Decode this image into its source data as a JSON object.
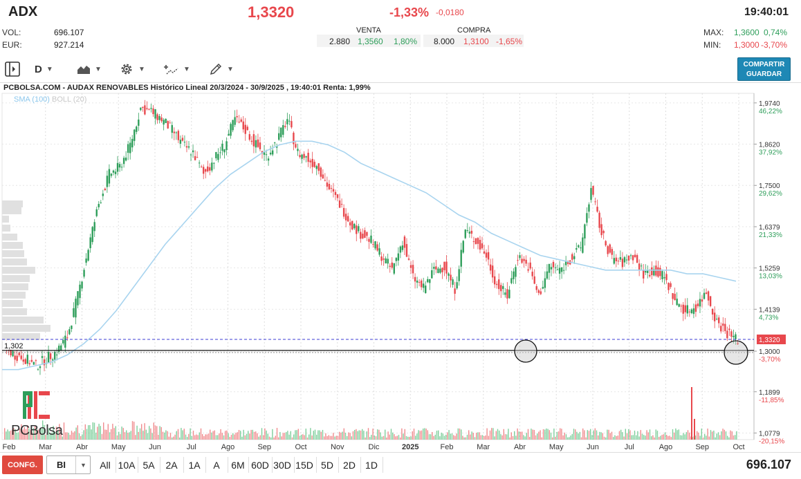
{
  "header": {
    "ticker": "ADX",
    "price": "1,3320",
    "change_pct": "-1,33%",
    "change_abs": "-0,0180",
    "time": "19:40:01",
    "vol_label": "VOL:",
    "vol_value": "696.107",
    "eur_label": "EUR:",
    "eur_value": "927.214",
    "max_label": "MAX:",
    "max_value": "1,3600",
    "max_pct": "0,74%",
    "min_label": "MIN:",
    "min_value": "1,3000",
    "min_pct": "-3,70%"
  },
  "orderbook": {
    "venta_label": "VENTA",
    "compra_label": "COMPRA",
    "venta_qty": "2.880",
    "venta_price": "1,3560",
    "venta_pct": "1,80%",
    "compra_qty": "8.000",
    "compra_price": "1,3100",
    "compra_pct": "-1,65%"
  },
  "toolbar": {
    "period_label": "D",
    "share_label": "COMPARTIR",
    "save_label": "GUARDAR",
    "icons": [
      "panel-toggle-icon",
      "area-chart-icon",
      "gear-icon",
      "indicators-icon",
      "drawing-pencil-icon"
    ]
  },
  "chart_title": "PCBOLSA.COM - AUDAX RENOVABLES Histórico Lineal 20/3/2024 - 30/9/2025 , 19:40:01 Renta: 1,99%",
  "legend": {
    "sma_label": "SMA (100)",
    "boll_label": "BOLL (20)"
  },
  "logo_text": "PCBolsa",
  "chart_data": {
    "type": "line",
    "title": "PCBOLSA.COM - AUDAX RENOVABLES Histórico Lineal 20/3/2024 - 30/9/2025 , 19:40:01 Renta: 1,99%",
    "xlabel": "",
    "ylabel": "",
    "x_ticks": [
      "Feb",
      "Mar",
      "Abr",
      "May",
      "Jun",
      "Jul",
      "Ago",
      "Sep",
      "Oct",
      "Nov",
      "Dic",
      "2025",
      "Feb",
      "Mar",
      "Abr",
      "May",
      "Jun",
      "Jul",
      "Ago",
      "Sep",
      "Oct"
    ],
    "y_ticks": [
      {
        "value": 1.974,
        "label": "1,9740",
        "pct": "46,22%"
      },
      {
        "value": 1.862,
        "label": "1,8620",
        "pct": "37,92%"
      },
      {
        "value": 1.75,
        "label": "1,7500",
        "pct": "29,62%"
      },
      {
        "value": 1.6379,
        "label": "1,6379",
        "pct": "21,33%"
      },
      {
        "value": 1.5259,
        "label": "1,5259",
        "pct": "13,03%"
      },
      {
        "value": 1.4139,
        "label": "1,4139",
        "pct": "4,73%"
      },
      {
        "value": 1.3,
        "label": "1,3000",
        "pct": "-3,70%"
      },
      {
        "value": 1.1899,
        "label": "1,1899",
        "pct": "-11,85%"
      },
      {
        "value": 1.0779,
        "label": "1,0779",
        "pct": "-20,15%"
      }
    ],
    "ylim": [
      1.06,
      2.0
    ],
    "last_price": {
      "value": 1.332,
      "label": "1,3320"
    },
    "support_line": {
      "value": 1.302,
      "label": "1,302"
    },
    "series": [
      {
        "name": "AUDAX RENOVABLES",
        "color": "#e8474c",
        "values": [
          1.31,
          1.29,
          1.28,
          1.26,
          1.28,
          1.3,
          1.34,
          1.45,
          1.58,
          1.7,
          1.78,
          1.8,
          1.86,
          1.96,
          1.95,
          1.93,
          1.9,
          1.86,
          1.84,
          1.78,
          1.82,
          1.86,
          1.93,
          1.9,
          1.86,
          1.83,
          1.87,
          1.93,
          1.84,
          1.82,
          1.8,
          1.74,
          1.7,
          1.65,
          1.62,
          1.6,
          1.56,
          1.52,
          1.6,
          1.5,
          1.47,
          1.52,
          1.53,
          1.47,
          1.63,
          1.6,
          1.56,
          1.48,
          1.45,
          1.56,
          1.53,
          1.45,
          1.53,
          1.52,
          1.55,
          1.58,
          1.74,
          1.62,
          1.55,
          1.54,
          1.56,
          1.51,
          1.52,
          1.5,
          1.44,
          1.41,
          1.42,
          1.46,
          1.38,
          1.35,
          1.33
        ]
      },
      {
        "name": "SMA (100)",
        "color": "#a8d4ef",
        "values": [
          1.25,
          1.25,
          1.26,
          1.27,
          1.29,
          1.32,
          1.36,
          1.41,
          1.47,
          1.53,
          1.59,
          1.64,
          1.69,
          1.74,
          1.78,
          1.81,
          1.84,
          1.86,
          1.87,
          1.87,
          1.86,
          1.84,
          1.81,
          1.79,
          1.77,
          1.75,
          1.73,
          1.7,
          1.67,
          1.65,
          1.62,
          1.6,
          1.58,
          1.56,
          1.55,
          1.54,
          1.53,
          1.52,
          1.52,
          1.52,
          1.52,
          1.52,
          1.51,
          1.51,
          1.5,
          1.49
        ]
      }
    ],
    "colors": {
      "up": "#2e9e5a",
      "down": "#e8474c",
      "sma": "#a8d4ef",
      "last_price_line": "#3b3bd6"
    }
  },
  "bottom": {
    "config_label": "CONFG.",
    "scale_value": "BI",
    "ranges": [
      "All",
      "10A",
      "5A",
      "2A",
      "1A",
      "A",
      "6M",
      "60D",
      "30D",
      "15D",
      "5D",
      "2D",
      "1D"
    ],
    "volume": "696.107"
  }
}
